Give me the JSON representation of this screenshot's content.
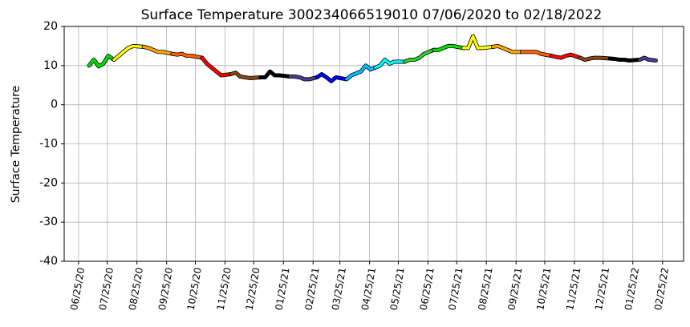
{
  "chart_data": {
    "type": "line",
    "title": "Surface Temperature 300234066519010  07/06/2020 to 02/18/2022",
    "y_label": "Surface Temperature",
    "xlim": [
      "06/10/20",
      "03/19/22"
    ],
    "xticks": [
      "06/25/20",
      "07/25/20",
      "08/25/20",
      "09/25/20",
      "10/25/20",
      "11/25/20",
      "12/25/20",
      "01/25/21",
      "02/25/21",
      "03/25/21",
      "04/25/21",
      "05/25/21",
      "06/25/21",
      "07/25/21",
      "08/25/21",
      "09/25/21",
      "10/25/21",
      "11/25/21",
      "12/25/21",
      "01/25/22",
      "02/25/22"
    ],
    "ylim": [
      -40,
      20
    ],
    "yticks": [
      -40,
      -30,
      -20,
      -10,
      0,
      10,
      20
    ],
    "grid": true,
    "series": [
      {
        "color": "#00e000",
        "x": [
          "07/06/20",
          "07/11/20",
          "07/16/20",
          "07/21/20",
          "07/26/20",
          "08/01/20"
        ],
        "values": [
          10,
          11.5,
          9.8,
          10.5,
          12.5,
          11.5
        ]
      },
      {
        "color": "#ffff00",
        "x": [
          "08/01/20",
          "08/06/20",
          "08/11/20",
          "08/16/20",
          "08/21/20",
          "09/01/20"
        ],
        "values": [
          11.5,
          12.5,
          13.5,
          14.5,
          15,
          14.8
        ]
      },
      {
        "color": "#ffa500",
        "x": [
          "09/01/20",
          "09/06/20",
          "09/11/20",
          "09/16/20",
          "09/21/20",
          "10/01/20"
        ],
        "values": [
          14.8,
          14.5,
          14,
          13.5,
          13.5,
          13
        ]
      },
      {
        "color": "#ff6000",
        "x": [
          "10/01/20",
          "10/06/20",
          "10/11/20",
          "10/16/20",
          "10/21/20",
          "11/01/20"
        ],
        "values": [
          13,
          12.8,
          13,
          12.5,
          12.5,
          12
        ]
      },
      {
        "color": "#ff0000",
        "x": [
          "11/01/20",
          "11/06/20",
          "11/11/20",
          "11/16/20",
          "11/21/20",
          "12/01/20"
        ],
        "values": [
          12,
          10.5,
          9.5,
          8.5,
          7.5,
          7.8
        ]
      },
      {
        "color": "#8b4513",
        "x": [
          "12/01/20",
          "12/06/20",
          "12/11/20",
          "12/16/20",
          "12/21/20",
          "01/01/21"
        ],
        "values": [
          7.8,
          8.2,
          7.2,
          7,
          6.8,
          7
        ]
      },
      {
        "color": "#000000",
        "x": [
          "01/01/21",
          "01/06/21",
          "01/11/21",
          "01/16/21",
          "01/21/21",
          "02/01/21"
        ],
        "values": [
          7,
          7,
          8.5,
          7.5,
          7.5,
          7.2
        ]
      },
      {
        "color": "#483d8b",
        "x": [
          "02/01/21",
          "02/06/21",
          "02/11/21",
          "02/16/21",
          "02/21/21",
          "03/01/21"
        ],
        "values": [
          7.2,
          7.2,
          7,
          6.5,
          6.5,
          7
        ]
      },
      {
        "color": "#0000ff",
        "x": [
          "03/01/21",
          "03/06/21",
          "03/11/21",
          "03/16/21",
          "03/21/21",
          "04/01/21"
        ],
        "values": [
          7,
          7.8,
          7,
          6,
          7,
          6.5
        ]
      },
      {
        "color": "#00bfff",
        "x": [
          "04/01/21",
          "04/06/21",
          "04/11/21",
          "04/16/21",
          "04/21/21",
          "04/26/21",
          "05/01/21"
        ],
        "values": [
          6.5,
          7.5,
          8,
          8.5,
          10,
          9,
          9.5
        ]
      },
      {
        "color": "#00ffff",
        "x": [
          "05/01/21",
          "05/06/21",
          "05/11/21",
          "05/16/21",
          "05/21/21",
          "06/01/21"
        ],
        "values": [
          9.5,
          10,
          11.5,
          10.5,
          11,
          11
        ]
      },
      {
        "color": "#32cd32",
        "x": [
          "06/01/21",
          "06/06/21",
          "06/11/21",
          "06/16/21",
          "06/21/21",
          "07/01/21"
        ],
        "values": [
          11,
          11.5,
          11.5,
          12,
          13,
          14
        ]
      },
      {
        "color": "#00e000",
        "x": [
          "07/01/21",
          "07/06/21",
          "07/11/21",
          "07/16/21",
          "07/21/21",
          "08/01/21"
        ],
        "values": [
          14,
          14,
          14.5,
          15,
          15,
          14.5
        ]
      },
      {
        "color": "#ffff00",
        "x": [
          "08/01/21",
          "08/06/21",
          "08/11/21",
          "08/16/21",
          "08/21/21",
          "09/01/21"
        ],
        "values": [
          14.5,
          14.5,
          17.5,
          14.5,
          14.5,
          14.8
        ]
      },
      {
        "color": "#ffa500",
        "x": [
          "09/01/21",
          "09/06/21",
          "09/11/21",
          "09/16/21",
          "09/21/21",
          "10/01/21"
        ],
        "values": [
          14.8,
          15,
          14.5,
          14,
          13.5,
          13.5
        ]
      },
      {
        "color": "#ff6000",
        "x": [
          "10/01/21",
          "10/06/21",
          "10/11/21",
          "10/16/21",
          "10/21/21",
          "11/01/21"
        ],
        "values": [
          13.5,
          13.5,
          13.5,
          13.5,
          13,
          12.5
        ]
      },
      {
        "color": "#ff0000",
        "x": [
          "11/01/21",
          "11/06/21",
          "11/11/21",
          "11/16/21",
          "11/21/21",
          "12/01/21"
        ],
        "values": [
          12.5,
          12.2,
          12,
          12.5,
          12.8,
          12
        ]
      },
      {
        "color": "#8b4513",
        "x": [
          "12/01/21",
          "12/06/21",
          "12/11/21",
          "12/16/21",
          "12/21/21",
          "01/01/22"
        ],
        "values": [
          12,
          11.5,
          11.8,
          12,
          12,
          11.8
        ]
      },
      {
        "color": "#000000",
        "x": [
          "01/01/22",
          "01/06/22",
          "01/11/22",
          "01/16/22",
          "01/21/22",
          "02/01/22"
        ],
        "values": [
          11.8,
          11.7,
          11.5,
          11.5,
          11.3,
          11.5
        ]
      },
      {
        "color": "#483d8b",
        "x": [
          "02/01/22",
          "02/06/22",
          "02/11/22",
          "02/18/22"
        ],
        "values": [
          11.5,
          12,
          11.5,
          11.3
        ]
      }
    ]
  }
}
